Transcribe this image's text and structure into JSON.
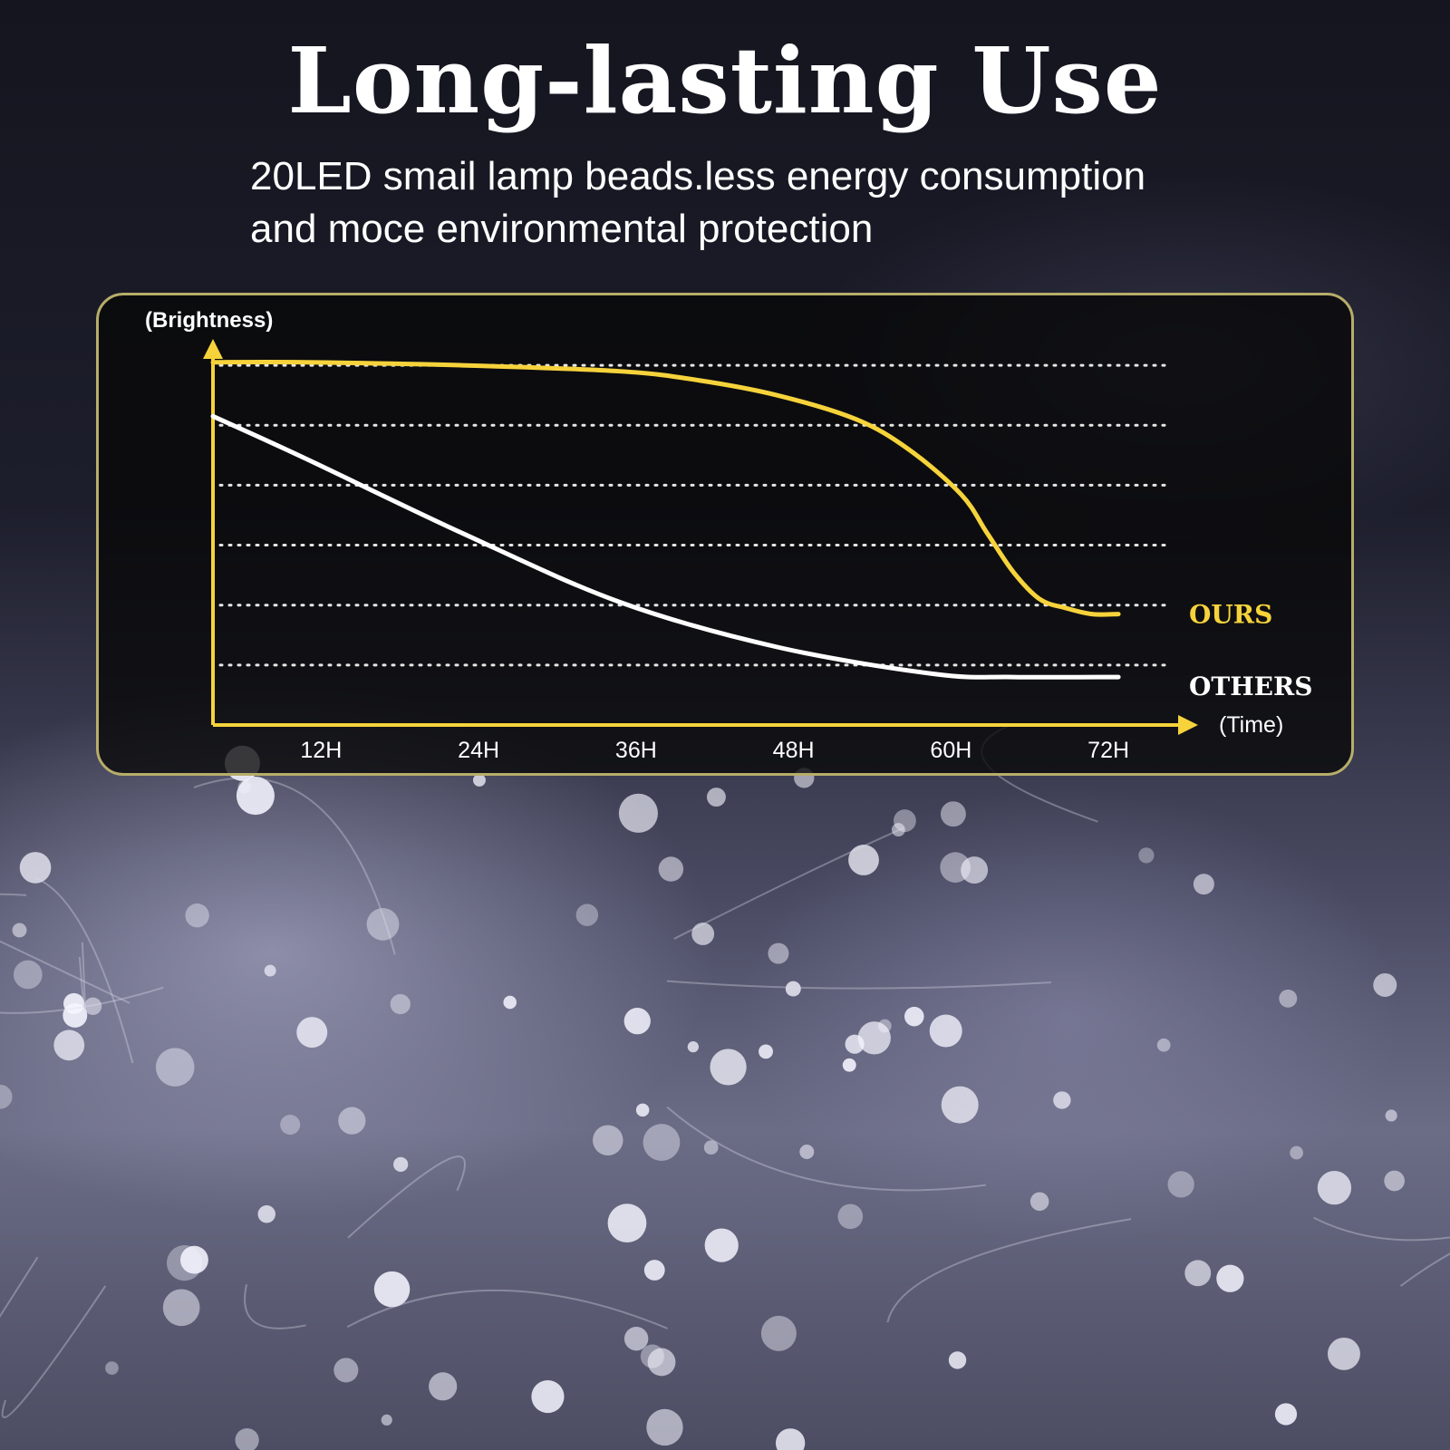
{
  "header": {
    "title": "Long-lasting Use",
    "subtitle_lines": [
      "20LED smail lamp beads.less energy consumption",
      "and moce environmental protection"
    ]
  },
  "colors": {
    "ours": "#f6d33b",
    "others": "#ffffff",
    "axis": "#f6d33b",
    "panel_border": "#b7ad6a",
    "grid": "#e6e6e6"
  },
  "chart_data": {
    "type": "line",
    "ylabel": "(Brightness)",
    "xlabel": "(Time)",
    "x_ticks": [
      "12H",
      "24H",
      "36H",
      "48H",
      "60H",
      "72H"
    ],
    "x_tick_values": [
      12,
      24,
      36,
      48,
      60,
      72
    ],
    "xlim": [
      5,
      78
    ],
    "ylim": [
      0,
      6.5
    ],
    "grid": true,
    "grid_y_values": [
      1,
      2,
      3,
      4,
      5,
      6
    ],
    "legend": "inline-right",
    "series": [
      {
        "name": "OURS",
        "x": [
          5,
          12,
          24,
          36,
          42,
          48,
          54,
          58,
          62,
          64,
          66,
          68,
          70,
          72,
          74
        ],
        "y": [
          6.05,
          6.05,
          6.0,
          5.9,
          5.75,
          5.5,
          5.1,
          4.6,
          3.85,
          3.2,
          2.55,
          2.1,
          1.95,
          1.85,
          1.85
        ]
      },
      {
        "name": "OTHERS",
        "x": [
          5,
          12,
          24,
          36,
          48,
          60,
          66,
          74
        ],
        "y": [
          5.15,
          4.45,
          3.2,
          2.05,
          1.3,
          0.85,
          0.8,
          0.8
        ]
      }
    ]
  }
}
